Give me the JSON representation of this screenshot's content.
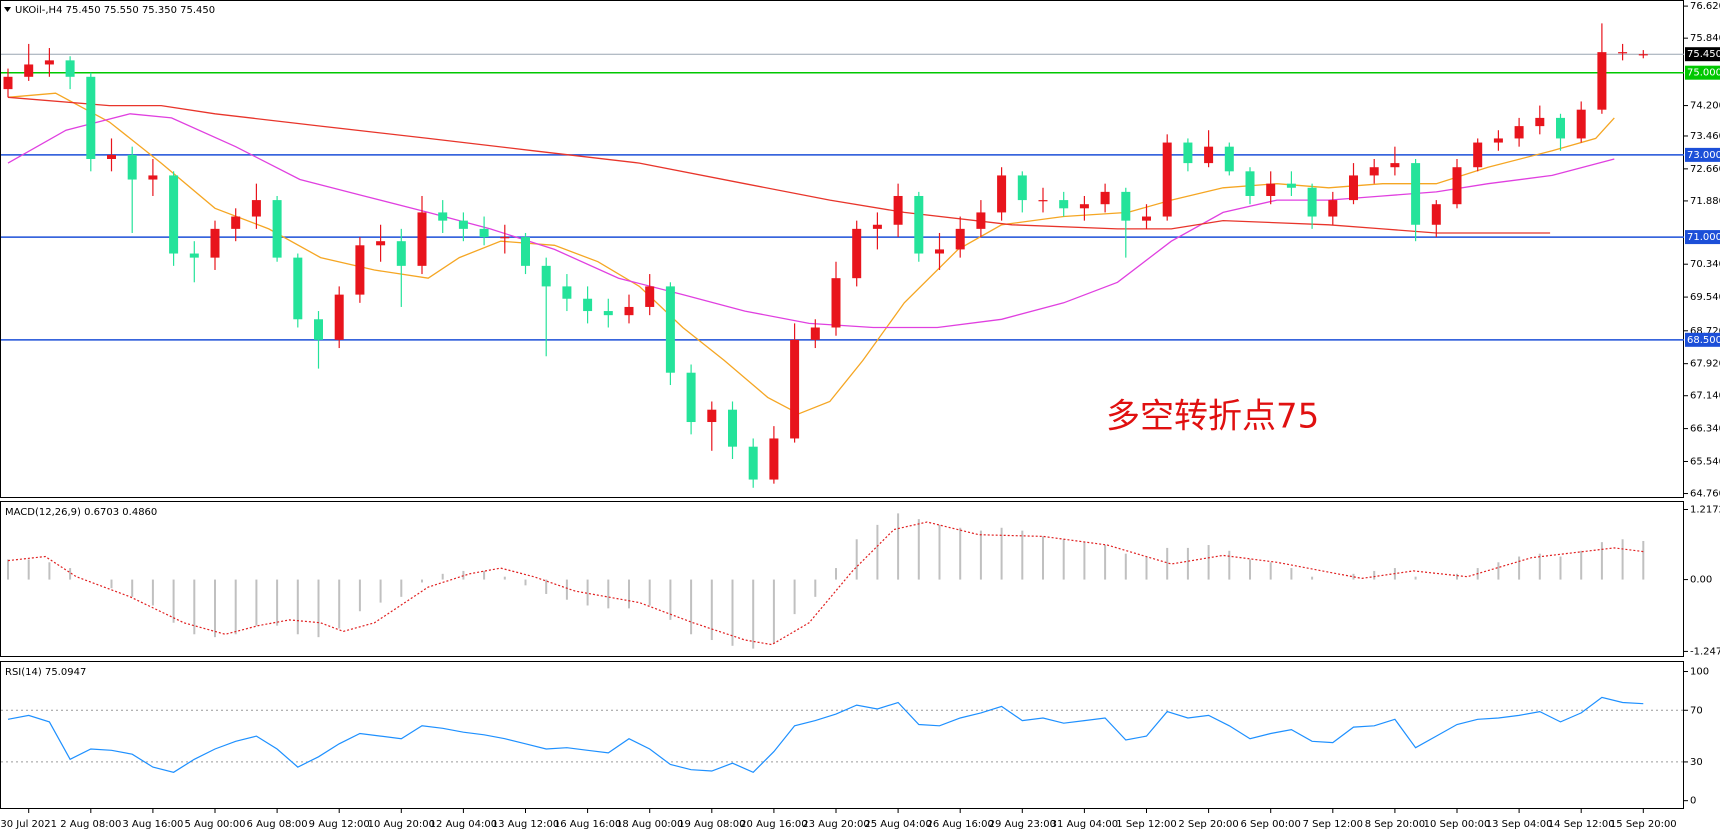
{
  "chart_data": [
    {
      "type": "candlestick",
      "title": "UKOil-,H4  75.450 75.550 75.350 75.450",
      "annotation": "多空转折点75",
      "up_color": "#e8141c",
      "down_color": "#24e39a",
      "categories": [
        null,
        "30 Jul 2021",
        null,
        null,
        "2 Aug 08:00",
        null,
        null,
        "3 Aug 16:00",
        null,
        null,
        "5 Aug 00:00",
        null,
        null,
        "6 Aug 08:00",
        null,
        null,
        "9 Aug 12:00",
        null,
        null,
        "10 Aug 20:00",
        null,
        null,
        "12 Aug 04:00",
        null,
        null,
        "13 Aug 12:00",
        null,
        null,
        "16 Aug 16:00",
        null,
        null,
        "18 Aug 00:00",
        null,
        null,
        "19 Aug 08:00",
        null,
        null,
        "20 Aug 16:00",
        null,
        null,
        "23 Aug 20:00",
        null,
        null,
        "25 Aug 04:00",
        null,
        null,
        "26 Aug 16:00",
        null,
        null,
        "29 Aug 23:00",
        null,
        null,
        "31 Aug 04:00",
        null,
        null,
        "1 Sep 12:00",
        null,
        null,
        "2 Sep 20:00",
        null,
        null,
        "6 Sep 00:00",
        null,
        null,
        "7 Sep 12:00",
        null,
        null,
        "8 Sep 20:00",
        null,
        null,
        "10 Sep 00:00",
        null,
        null,
        "13 Sep 04:00",
        null,
        null,
        "14 Sep 12:00",
        null,
        null,
        "15 Sep 20:00"
      ],
      "ohlc": [
        [
          74.6,
          75.1,
          74.4,
          74.9
        ],
        [
          74.9,
          75.7,
          74.8,
          75.2
        ],
        [
          75.2,
          75.6,
          74.9,
          75.3
        ],
        [
          75.3,
          75.4,
          74.6,
          74.9
        ],
        [
          74.9,
          75.0,
          72.6,
          72.9
        ],
        [
          72.9,
          73.4,
          72.6,
          73.0
        ],
        [
          73.0,
          73.2,
          71.1,
          72.4
        ],
        [
          72.4,
          72.9,
          72.0,
          72.5
        ],
        [
          72.5,
          72.6,
          70.3,
          70.6
        ],
        [
          70.6,
          70.9,
          69.9,
          70.5
        ],
        [
          70.5,
          71.4,
          70.2,
          71.2
        ],
        [
          71.2,
          71.7,
          70.9,
          71.5
        ],
        [
          71.5,
          72.3,
          71.2,
          71.9
        ],
        [
          71.9,
          72.0,
          70.4,
          70.5
        ],
        [
          70.5,
          70.6,
          68.8,
          69.0
        ],
        [
          69.0,
          69.2,
          67.8,
          68.5
        ],
        [
          68.5,
          69.8,
          68.3,
          69.6
        ],
        [
          69.6,
          71.0,
          69.4,
          70.8
        ],
        [
          70.8,
          71.3,
          70.4,
          70.9
        ],
        [
          70.9,
          71.2,
          69.3,
          70.3
        ],
        [
          70.3,
          72.0,
          70.1,
          71.6
        ],
        [
          71.6,
          71.9,
          71.1,
          71.4
        ],
        [
          71.4,
          71.6,
          70.9,
          71.2
        ],
        [
          71.2,
          71.5,
          70.8,
          71.0
        ],
        [
          71.0,
          71.3,
          70.6,
          71.0
        ],
        [
          71.0,
          71.1,
          70.1,
          70.3
        ],
        [
          70.3,
          70.5,
          68.1,
          69.8
        ],
        [
          69.8,
          70.1,
          69.2,
          69.5
        ],
        [
          69.5,
          69.8,
          68.9,
          69.2
        ],
        [
          69.2,
          69.5,
          68.8,
          69.1
        ],
        [
          69.1,
          69.6,
          68.9,
          69.3
        ],
        [
          69.3,
          70.1,
          69.1,
          69.8
        ],
        [
          69.8,
          69.9,
          67.4,
          67.7
        ],
        [
          67.7,
          67.9,
          66.2,
          66.5
        ],
        [
          66.5,
          67.0,
          65.8,
          66.8
        ],
        [
          66.8,
          67.0,
          65.6,
          65.9
        ],
        [
          65.9,
          66.1,
          64.9,
          65.1
        ],
        [
          65.1,
          66.4,
          65.0,
          66.1
        ],
        [
          66.1,
          68.9,
          66.0,
          68.5
        ],
        [
          68.5,
          69.0,
          68.3,
          68.8
        ],
        [
          68.8,
          70.4,
          68.6,
          70.0
        ],
        [
          70.0,
          71.4,
          69.8,
          71.2
        ],
        [
          71.2,
          71.6,
          70.7,
          71.3
        ],
        [
          71.3,
          72.3,
          71.0,
          72.0
        ],
        [
          72.0,
          72.1,
          70.4,
          70.6
        ],
        [
          70.6,
          71.1,
          70.2,
          70.7
        ],
        [
          70.7,
          71.5,
          70.5,
          71.2
        ],
        [
          71.2,
          71.9,
          71.0,
          71.6
        ],
        [
          71.6,
          72.7,
          71.4,
          72.5
        ],
        [
          72.5,
          72.6,
          71.6,
          71.9
        ],
        [
          71.9,
          72.2,
          71.6,
          71.9
        ],
        [
          71.9,
          72.1,
          71.5,
          71.7
        ],
        [
          71.7,
          72.0,
          71.4,
          71.8
        ],
        [
          71.8,
          72.3,
          71.6,
          72.1
        ],
        [
          72.1,
          72.2,
          70.5,
          71.4
        ],
        [
          71.4,
          71.8,
          71.2,
          71.5
        ],
        [
          71.5,
          73.5,
          71.4,
          73.3
        ],
        [
          73.3,
          73.4,
          72.6,
          72.8
        ],
        [
          72.8,
          73.6,
          72.7,
          73.2
        ],
        [
          73.2,
          73.3,
          72.5,
          72.6
        ],
        [
          72.6,
          72.7,
          71.8,
          72.0
        ],
        [
          72.0,
          72.6,
          71.8,
          72.3
        ],
        [
          72.3,
          72.6,
          72.0,
          72.2
        ],
        [
          72.2,
          72.3,
          71.2,
          71.5
        ],
        [
          71.5,
          72.1,
          71.3,
          71.9
        ],
        [
          71.9,
          72.8,
          71.8,
          72.5
        ],
        [
          72.5,
          72.9,
          72.3,
          72.7
        ],
        [
          72.7,
          73.2,
          72.5,
          72.8
        ],
        [
          72.8,
          72.9,
          70.9,
          71.3
        ],
        [
          71.3,
          71.9,
          71.0,
          71.8
        ],
        [
          71.8,
          72.9,
          71.7,
          72.7
        ],
        [
          72.7,
          73.4,
          72.6,
          73.3
        ],
        [
          73.3,
          73.6,
          73.1,
          73.4
        ],
        [
          73.4,
          73.9,
          73.2,
          73.7
        ],
        [
          73.7,
          74.2,
          73.5,
          73.9
        ],
        [
          73.9,
          74.0,
          73.1,
          73.4
        ],
        [
          73.4,
          74.3,
          73.3,
          74.1
        ],
        [
          74.1,
          76.2,
          74.0,
          75.5
        ],
        [
          75.5,
          75.7,
          75.3,
          75.5
        ],
        [
          75.45,
          75.55,
          75.35,
          75.45
        ]
      ],
      "ylim": [
        64.7,
        76.72
      ],
      "yticks": [
        {
          "value": 76.62,
          "label": "76.620"
        },
        {
          "value": 75.84,
          "label": "75.840"
        },
        {
          "value": 74.2,
          "label": "74.200"
        },
        {
          "value": 73.46,
          "label": "73.460"
        },
        {
          "value": 72.66,
          "label": "72.660"
        },
        {
          "value": 71.88,
          "label": "71.880"
        },
        {
          "value": 70.34,
          "label": "70.340"
        },
        {
          "value": 69.54,
          "label": "69.540"
        },
        {
          "value": 68.72,
          "label": "68.720"
        },
        {
          "value": 67.92,
          "label": "67.920"
        },
        {
          "value": 67.14,
          "label": "67.140"
        },
        {
          "value": 66.34,
          "label": "66.340"
        },
        {
          "value": 65.54,
          "label": "65.540"
        },
        {
          "value": 64.76,
          "label": "64.760"
        }
      ],
      "levels": [
        {
          "value": 75,
          "label": "75.000",
          "color": "#00c800"
        },
        {
          "value": 73,
          "label": "73.000",
          "color": "#1c4fd8"
        },
        {
          "value": 71,
          "label": "71.000",
          "color": "#1c4fd8"
        },
        {
          "value": 68.5,
          "label": "68.500",
          "color": "#1c4fd8"
        }
      ],
      "bid": {
        "value": 75.45,
        "label": "75.450",
        "color": "#9aa6b2"
      },
      "ma": [
        {
          "color": "#f5a623",
          "x": [
            0,
            2.3,
            4.9,
            7.4,
            10,
            12.6,
            15.1,
            17.7,
            20.3,
            21.8,
            23.8,
            26.4,
            28.5,
            30.5,
            32.6,
            34.6,
            36.7,
            38.2,
            39.7,
            41.3,
            43.3,
            45.9,
            48,
            51,
            54.1,
            56.2,
            58.7,
            61.3,
            63.8,
            66.4,
            69,
            71.5,
            74.6,
            76.7,
            77.6
          ],
          "values": [
            74.4,
            74.5,
            73.8,
            72.8,
            71.7,
            71.2,
            70.5,
            70.2,
            70.0,
            70.5,
            70.9,
            70.8,
            70.4,
            69.8,
            68.8,
            68.0,
            67.1,
            66.7,
            67.0,
            68.0,
            69.4,
            70.7,
            71.3,
            71.5,
            71.6,
            71.9,
            72.2,
            72.3,
            72.2,
            72.3,
            72.3,
            72.7,
            73.1,
            73.4,
            73.9
          ]
        },
        {
          "color": "#e040e0",
          "x": [
            0,
            2.8,
            5.9,
            7.9,
            11,
            14.1,
            17.2,
            20.3,
            23.3,
            26.4,
            29.5,
            32.6,
            35.6,
            38.7,
            41.8,
            44.9,
            48,
            51,
            53.6,
            56.2,
            58.7,
            61.3,
            63.8,
            66.4,
            69,
            71.5,
            74.6,
            77.6
          ],
          "values": [
            72.8,
            73.6,
            74.0,
            73.9,
            73.2,
            72.4,
            72.0,
            71.6,
            71.2,
            70.7,
            70.0,
            69.6,
            69.2,
            68.9,
            68.8,
            68.8,
            69.0,
            69.4,
            69.9,
            70.9,
            71.6,
            71.9,
            71.9,
            72.0,
            72.1,
            72.3,
            72.5,
            72.9
          ]
        },
        {
          "color": "#e8352b",
          "x": [
            0,
            4.9,
            7.4,
            10,
            15.1,
            20.3,
            25.4,
            30.5,
            35.6,
            39.7,
            43.3,
            48.5,
            53.6,
            56.2,
            58.7,
            63.8,
            66.4,
            69,
            74.5
          ],
          "values": [
            74.4,
            74.2,
            74.2,
            74.0,
            73.7,
            73.4,
            73.1,
            72.8,
            72.3,
            71.9,
            71.6,
            71.3,
            71.2,
            71.2,
            71.4,
            71.3,
            71.2,
            71.1,
            71.1
          ]
        }
      ]
    },
    {
      "type": "macd",
      "title": "MACD(12,26,9) 0.6703 0.4860",
      "color": "#c0c0c0",
      "values": [
        0.35,
        0.35,
        0.3,
        0.2,
        0.0,
        -0.15,
        -0.3,
        -0.45,
        -0.75,
        -0.95,
        -1.0,
        -0.95,
        -0.8,
        -0.8,
        -0.95,
        -1.0,
        -0.85,
        -0.55,
        -0.4,
        -0.3,
        -0.05,
        0.1,
        0.15,
        0.15,
        0.05,
        -0.1,
        -0.25,
        -0.35,
        -0.45,
        -0.5,
        -0.5,
        -0.45,
        -0.7,
        -0.95,
        -1.05,
        -1.15,
        -1.2,
        -1.1,
        -0.6,
        -0.3,
        0.2,
        0.7,
        0.95,
        1.15,
        1.05,
        0.95,
        0.9,
        0.85,
        0.9,
        0.85,
        0.75,
        0.7,
        0.65,
        0.6,
        0.45,
        0.4,
        0.55,
        0.55,
        0.6,
        0.5,
        0.35,
        0.3,
        0.2,
        0.05,
        0.0,
        0.1,
        0.15,
        0.2,
        0.05,
        0.0,
        0.1,
        0.2,
        0.3,
        0.4,
        0.45,
        0.4,
        0.5,
        0.65,
        0.7,
        0.6703
      ],
      "signal": {
        "color": "#e02020",
        "x": [
          0,
          1.8,
          3.3,
          5.9,
          8.5,
          10.5,
          12.1,
          13.6,
          15.1,
          16.2,
          17.7,
          20.3,
          22.3,
          23.8,
          25.4,
          27.4,
          30.5,
          33.1,
          35.6,
          36.9,
          38.7,
          40.8,
          42.8,
          44.4,
          46.9,
          50,
          53.1,
          56.2,
          58.7,
          61.3,
          65.4,
          67.9,
          70.5,
          73.6,
          77.6,
          79
        ],
        "values": [
          0.33,
          0.4,
          0.05,
          -0.3,
          -0.75,
          -0.95,
          -0.8,
          -0.7,
          -0.75,
          -0.9,
          -0.75,
          -0.13,
          0.1,
          0.2,
          0.05,
          -0.2,
          -0.4,
          -0.75,
          -1.05,
          -1.13,
          -0.75,
          0.15,
          0.87,
          1.0,
          0.78,
          0.75,
          0.6,
          0.27,
          0.42,
          0.3,
          0.02,
          0.15,
          0.05,
          0.38,
          0.55,
          0.486
        ]
      },
      "ylim": [
        -1.31,
        1.33
      ],
      "yticks": [
        1.2172,
        {
          "value": 0,
          "label": "0.00"
        },
        -1.2479
      ]
    },
    {
      "type": "line",
      "title": "RSI(14) 75.0947",
      "color": "#1e90ff",
      "values": [
        63,
        66,
        61,
        32,
        40,
        39,
        36,
        26,
        22,
        32,
        40,
        46,
        50,
        40,
        26,
        34,
        44,
        52,
        50,
        48,
        58,
        56,
        53,
        51,
        48,
        44,
        40,
        41,
        39,
        37,
        48,
        40,
        28,
        24,
        23,
        29,
        22,
        38,
        58,
        62,
        67,
        74,
        71,
        76,
        59,
        58,
        64,
        68,
        73,
        62,
        64,
        60,
        62,
        64,
        47,
        50,
        69,
        64,
        66,
        58,
        48,
        52,
        55,
        46,
        45,
        57,
        58,
        63,
        41,
        50,
        59,
        63,
        64,
        66,
        69,
        61,
        68,
        80,
        76,
        75.0947
      ],
      "ylim": [
        -4.9,
        106.6
      ],
      "yticks": [
        100,
        70,
        30,
        0
      ],
      "levels": [
        70,
        30
      ]
    }
  ]
}
